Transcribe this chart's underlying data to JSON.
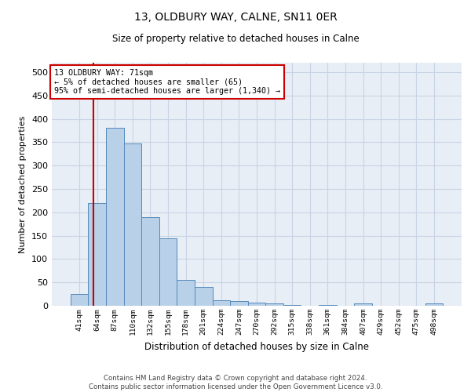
{
  "title": "13, OLDBURY WAY, CALNE, SN11 0ER",
  "subtitle": "Size of property relative to detached houses in Calne",
  "xlabel": "Distribution of detached houses by size in Calne",
  "ylabel": "Number of detached properties",
  "footer_line1": "Contains HM Land Registry data © Crown copyright and database right 2024.",
  "footer_line2": "Contains public sector information licensed under the Open Government Licence v3.0.",
  "bin_labels": [
    "41sqm",
    "64sqm",
    "87sqm",
    "110sqm",
    "132sqm",
    "155sqm",
    "178sqm",
    "201sqm",
    "224sqm",
    "247sqm",
    "270sqm",
    "292sqm",
    "315sqm",
    "338sqm",
    "361sqm",
    "384sqm",
    "407sqm",
    "429sqm",
    "452sqm",
    "475sqm",
    "498sqm"
  ],
  "bar_heights": [
    25,
    220,
    380,
    348,
    190,
    144,
    55,
    40,
    12,
    10,
    7,
    5,
    2,
    0,
    2,
    0,
    5,
    0,
    0,
    0,
    5
  ],
  "bar_color": "#b8d0e8",
  "bar_edge_color": "#5588bb",
  "bar_edge_width": 0.7,
  "grid_color": "#c8d4e4",
  "bg_color": "#e8eef6",
  "vline_color": "#cc0000",
  "annotation_box_color": "#cc0000",
  "ylim": [
    0,
    520
  ],
  "yticks": [
    0,
    50,
    100,
    150,
    200,
    250,
    300,
    350,
    400,
    450,
    500
  ]
}
